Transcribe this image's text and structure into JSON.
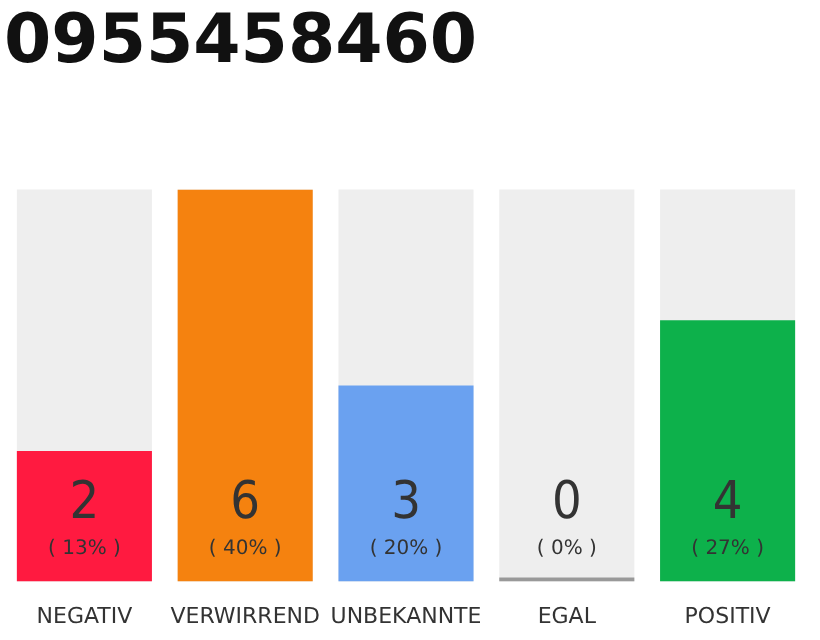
{
  "chart_data": {
    "type": "bar",
    "title": "0955458460",
    "categories": [
      "NEGATIV",
      "VERWIRREND",
      "UNBEKANNTE",
      "EGAL",
      "POSITIV"
    ],
    "values": [
      2,
      6,
      3,
      0,
      4
    ],
    "colors": [
      "#ff1a40",
      "#f5820f",
      "#6aa1f0",
      "#999999",
      "#0db14b"
    ],
    "value_labels": [
      "2\n( 13% )",
      "6\n( 40% )",
      "3\n( 20% )",
      "0\n( 0% )",
      "4\n( 27% )"
    ],
    "ylim": [
      0,
      6
    ],
    "tick_labels": "x",
    "grid": false,
    "legend": false
  }
}
